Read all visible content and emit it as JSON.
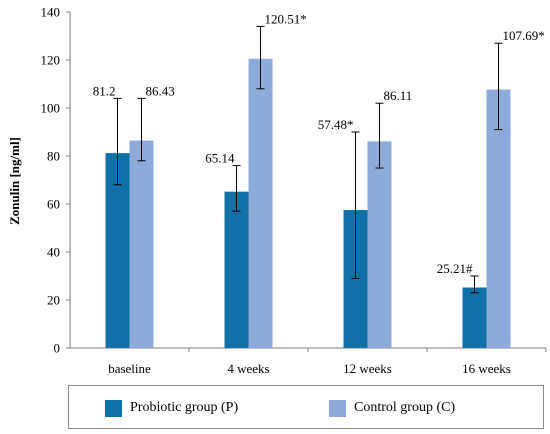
{
  "chart_data": {
    "type": "bar",
    "title": "",
    "xlabel": "",
    "ylabel": "Zonulin [ng/ml]",
    "ylim": [
      0,
      140
    ],
    "yticks": [
      0,
      20,
      40,
      60,
      80,
      100,
      120,
      140
    ],
    "grid": false,
    "legend_position": "bottom",
    "categories": [
      "baseline",
      "4 weeks",
      "12 weeks",
      "16 weeks"
    ],
    "series": [
      {
        "name": "Probiotic group (P)",
        "color": "#1170a8",
        "values": [
          81.2,
          65.14,
          57.48,
          25.21
        ],
        "error_low": [
          68,
          57,
          29,
          23
        ],
        "error_high": [
          104,
          76,
          90,
          30
        ],
        "labels": [
          "81.2",
          "65.14",
          "57.48*",
          "25.21#"
        ]
      },
      {
        "name": "Control group (C)",
        "color": "#8eaadb",
        "values": [
          86.43,
          120.51,
          86.11,
          107.69
        ],
        "error_low": [
          78,
          108,
          75,
          91
        ],
        "error_high": [
          104,
          134,
          102,
          127
        ],
        "labels": [
          "86.43",
          "120.51*",
          "86.11",
          "107.69*"
        ]
      }
    ]
  }
}
